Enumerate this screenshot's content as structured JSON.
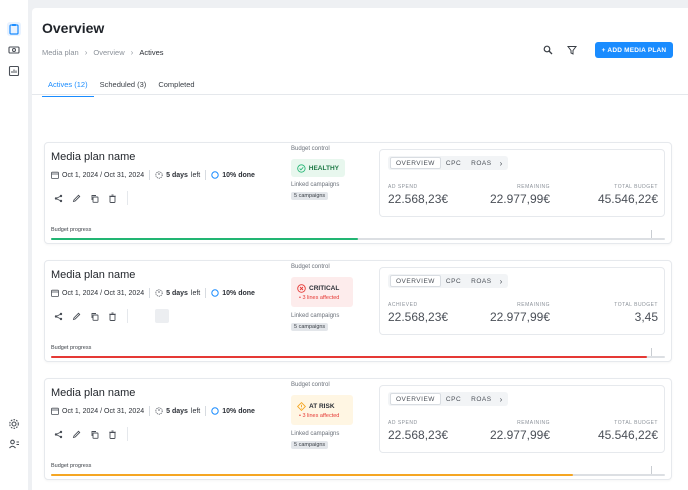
{
  "page": {
    "title": "Overview",
    "breadcrumb": [
      "Media plan",
      "Overview",
      "Actives"
    ],
    "add_button": "+ ADD MEDIA PLAN"
  },
  "tabs": [
    {
      "label": "Actives (12)",
      "active": true
    },
    {
      "label": "Scheduled (3)",
      "active": false
    },
    {
      "label": "Completed",
      "active": false
    }
  ],
  "colors": {
    "accent": "#1a8cff",
    "healthy": "#22b573",
    "critical": "#e53935",
    "at_risk": "#f5a623"
  },
  "plans": [
    {
      "name": "Media plan name",
      "dates": "Oct 1, 2024 / Oct 31, 2024",
      "days_left_value": "5 days",
      "days_left_suffix": "left",
      "done": "10% done",
      "budget_control_label": "Budget control",
      "status": "HEALTHY",
      "status_sub": "",
      "linked_label": "Linked campaigns",
      "linked_count": "5 campaigns",
      "metric_tabs": [
        "OVERVIEW",
        "CPC",
        "ROAS"
      ],
      "metrics": [
        {
          "label": "AD SPEND",
          "value": "22.568,23€"
        },
        {
          "label": "REMAINING",
          "value": "22.977,99€"
        },
        {
          "label": "TOTAL BUDGET",
          "value": "45.546,22€"
        }
      ],
      "progress_label": "Budget progress",
      "progress": 0.5
    },
    {
      "name": "Media plan name",
      "dates": "Oct 1, 2024 / Oct 31, 2024",
      "days_left_value": "5 days",
      "days_left_suffix": "left",
      "done": "10% done",
      "budget_control_label": "Budget control",
      "status": "CRITICAL",
      "status_sub": "3 lines affected",
      "linked_label": "Linked campaigns",
      "linked_count": "5 campaigns",
      "metric_tabs": [
        "OVERVIEW",
        "CPC",
        "ROAS"
      ],
      "metrics": [
        {
          "label": "ACHIEVED",
          "value": "22.568,23€"
        },
        {
          "label": "REMAINING",
          "value": "22.977,99€"
        },
        {
          "label": "TOTAL BUDGET",
          "value": "3,45"
        }
      ],
      "progress_label": "Budget progress",
      "progress": 0.97
    },
    {
      "name": "Media plan name",
      "dates": "Oct 1, 2024 / Oct 31, 2024",
      "days_left_value": "5 days",
      "days_left_suffix": "left",
      "done": "10% done",
      "budget_control_label": "Budget control",
      "status": "AT RISK",
      "status_sub": "3 lines affected",
      "linked_label": "Linked campaigns",
      "linked_count": "5 campaigns",
      "metric_tabs": [
        "OVERVIEW",
        "CPC",
        "ROAS"
      ],
      "metrics": [
        {
          "label": "AD SPEND",
          "value": "22.568,23€"
        },
        {
          "label": "REMAINING",
          "value": "22.977,99€"
        },
        {
          "label": "TOTAL BUDGET",
          "value": "45.546,22€"
        }
      ],
      "progress_label": "Budget progress",
      "progress": 0.85
    }
  ]
}
